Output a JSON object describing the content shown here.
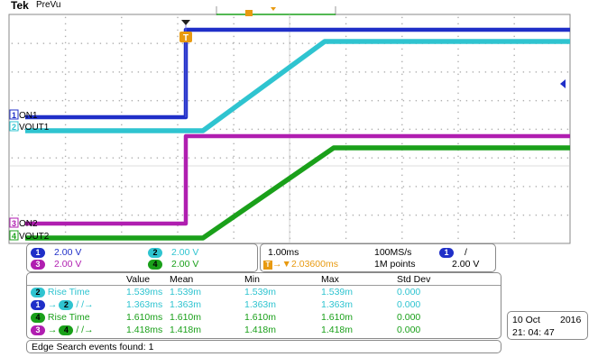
{
  "brand": {
    "name": "Tek",
    "mode": "PreVu"
  },
  "colors": {
    "ch1": "#1f2fc8",
    "ch2": "#2fc4d0",
    "ch3": "#b01eb0",
    "ch4": "#1aa01a",
    "trigger": "#e89a10"
  },
  "trigger_marker": "T",
  "channel_labels": {
    "ch1": {
      "num": "1",
      "name": "ON1"
    },
    "ch2": {
      "num": "2",
      "name": "VOUT1"
    },
    "ch3": {
      "num": "3",
      "name": "ON2"
    },
    "ch4": {
      "num": "4",
      "name": "VOUT2"
    }
  },
  "vertical_settings": [
    {
      "num": "1",
      "value": "2.00 V"
    },
    {
      "num": "2",
      "value": "2.00 V"
    },
    {
      "num": "3",
      "value": "2.00 V"
    },
    {
      "num": "4",
      "value": "2.00 V"
    }
  ],
  "horizontal": {
    "scale": "1.00ms",
    "sample_rate": "100MS/s",
    "delay": "2.03600ms",
    "record_length": "1M points"
  },
  "trigger_info": {
    "source": "1",
    "slope": "/",
    "level": "2.00 V"
  },
  "measurements": {
    "headers": [
      "Value",
      "Mean",
      "Min",
      "Max",
      "Std Dev"
    ],
    "rows": [
      {
        "from": "2",
        "label": "Rise Time",
        "values": [
          "1.539ms",
          "1.539m",
          "1.539m",
          "1.539m",
          "0.000"
        ]
      },
      {
        "from": "1",
        "to": "2",
        "label": "/ /→",
        "values": [
          "1.363ms",
          "1.363m",
          "1.363m",
          "1.363m",
          "0.000"
        ]
      },
      {
        "from": "4",
        "label": "Rise Time",
        "values": [
          "1.610ms",
          "1.610m",
          "1.610m",
          "1.610m",
          "0.000"
        ]
      },
      {
        "from": "3",
        "to": "4",
        "label": "/ /→",
        "values": [
          "1.418ms",
          "1.418m",
          "1.418m",
          "1.418m",
          "0.000"
        ]
      }
    ]
  },
  "datetime": {
    "date": "10 Oct",
    "year": "2016",
    "time": "21: 04: 47"
  },
  "status": "Edge Search events found: 1"
}
